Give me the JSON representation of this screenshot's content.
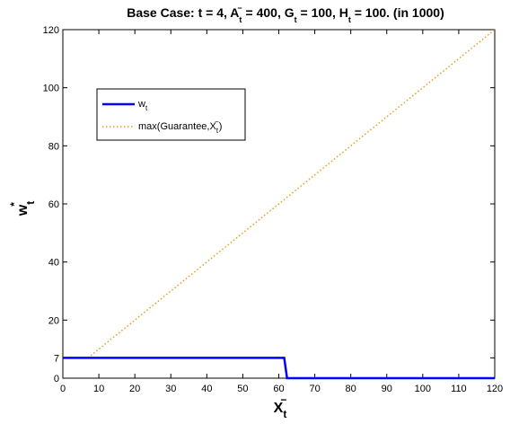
{
  "chart_data": {
    "type": "line",
    "title": {
      "prefix": "Base Case:   t = 4,  A",
      "a_sub": "t",
      "a_sup": "−",
      "a_mid": " = 400,  G",
      "g_sub": "t",
      "g_mid": " = 100,  H",
      "h_sub": "t",
      "suffix": " = 100.  (in 1000)"
    },
    "xlabel": {
      "base": "X",
      "sub": "t",
      "sup": "−"
    },
    "ylabel": {
      "base": "w",
      "sub": "t",
      "sup": "*"
    },
    "xlim": [
      0,
      120
    ],
    "ylim": [
      0,
      120
    ],
    "xticks": [
      0,
      10,
      20,
      30,
      40,
      50,
      60,
      70,
      80,
      90,
      100,
      110,
      120
    ],
    "yticks": [
      0,
      7,
      20,
      40,
      60,
      80,
      100,
      120
    ],
    "grid": false,
    "legend_position": "upper-left",
    "series": [
      {
        "name": "w_t",
        "label_base": "w",
        "label_sub": "t",
        "color": "#0000ff",
        "style": "solid",
        "x": [
          0,
          61.5,
          62.3,
          120
        ],
        "y": [
          7,
          7,
          0,
          0
        ]
      },
      {
        "name": "max(Guarantee, X_t^-)",
        "label_base": "max(Guarantee,X",
        "label_sub": "t",
        "label_sup": "−",
        "label_end": ")",
        "color": "#e0a020",
        "style": "dotted",
        "x": [
          0,
          7,
          120
        ],
        "y": [
          7,
          7,
          120
        ]
      }
    ]
  }
}
